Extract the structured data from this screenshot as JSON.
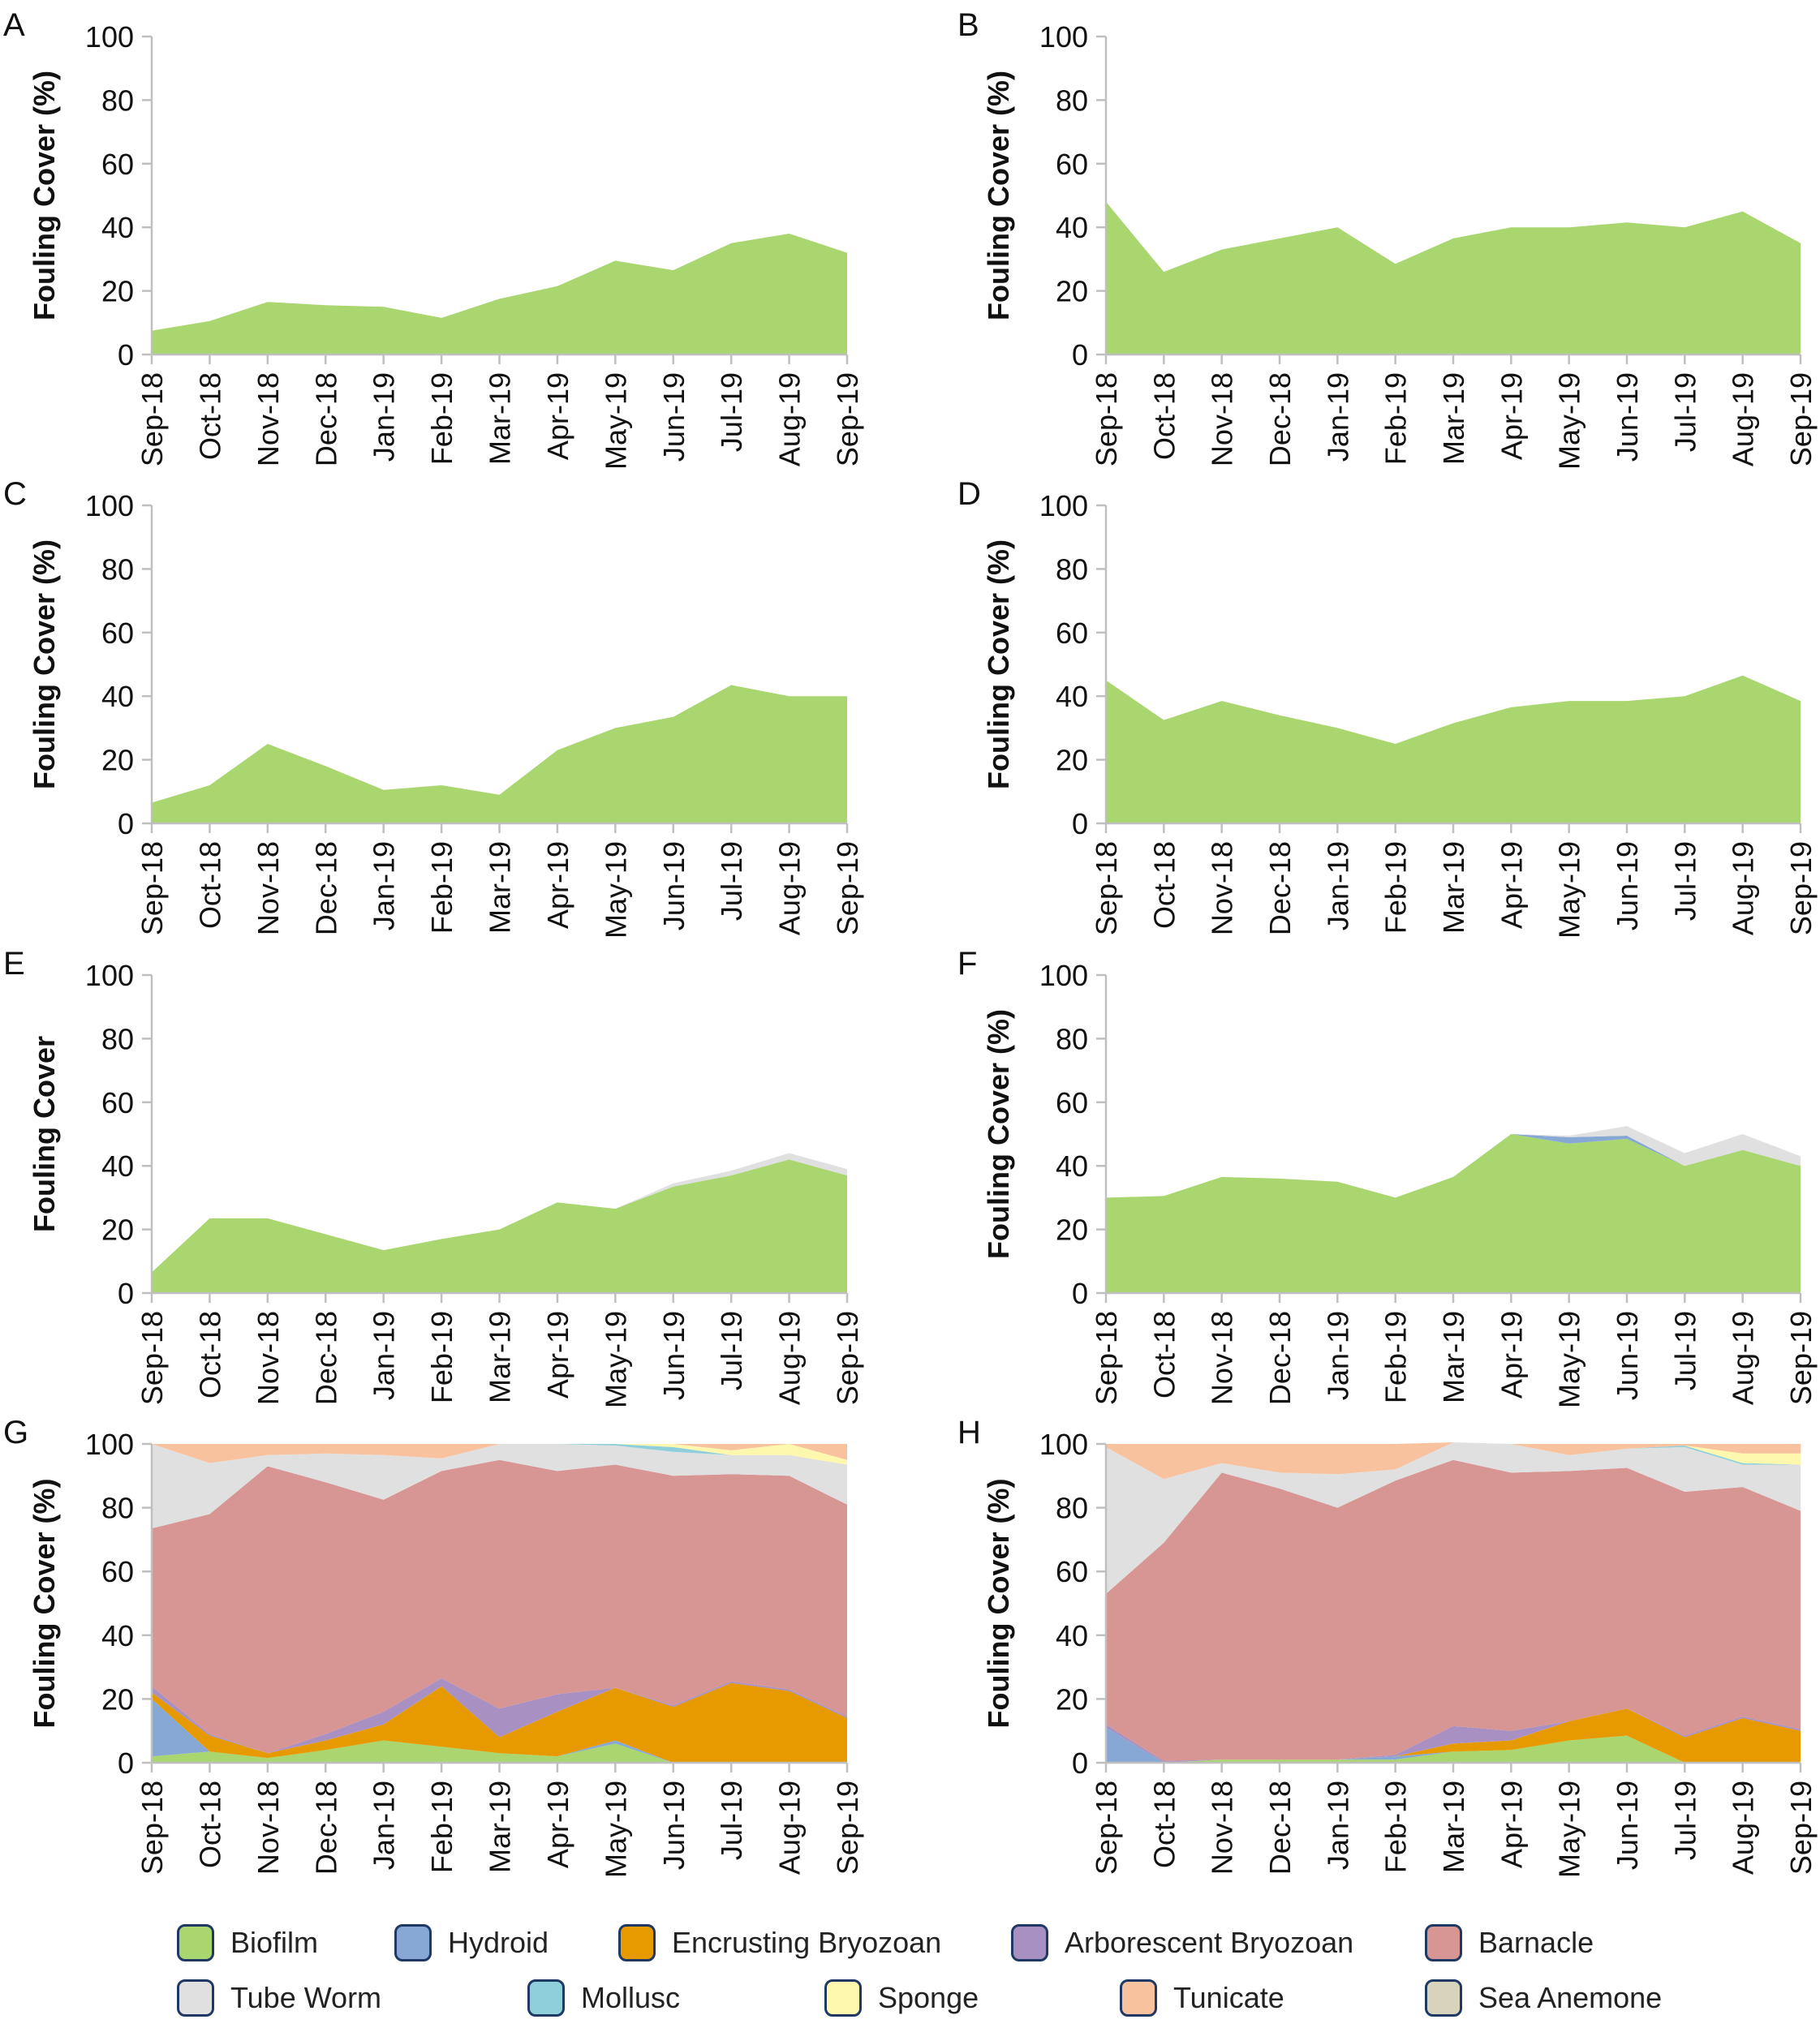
{
  "colors": {
    "Biofilm": "#a9d66f",
    "Hydroid": "#87a7d4",
    "Encrusting Bryozoan": "#e69a00",
    "Arborescent Bryozoan": "#a891c2",
    "Barnacle": "#d79593",
    "Tube Worm": "#e0e0e0",
    "Mollusc": "#8fcfdc",
    "Sponge": "#fdf8ae",
    "Tunicate": "#f8c29e",
    "Sea Anemone": "#d8d3bc"
  },
  "legend": [
    "Biofilm",
    "Hydroid",
    "Encrusting Bryozoan",
    "Arborescent Bryozoan",
    "Barnacle",
    "Tube Worm",
    "Mollusc",
    "Sponge",
    "Tunicate",
    "Sea Anemone"
  ],
  "chart_data": [
    {
      "panel": "A",
      "type": "area",
      "ylabel": "Fouling Cover (%)",
      "ylim": [
        0,
        100
      ],
      "yticks": [
        0,
        20,
        40,
        60,
        80,
        100
      ],
      "categories": [
        "Sep-18",
        "Oct-18",
        "Nov-18",
        "Dec-18",
        "Jan-19",
        "Feb-19",
        "Mar-19",
        "Apr-19",
        "May-19",
        "Jun-19",
        "Jul-19",
        "Aug-19",
        "Sep-19"
      ],
      "series": [
        {
          "name": "Biofilm",
          "values": [
            7.5,
            10.5,
            16.5,
            15.5,
            15,
            11.5,
            17.5,
            21.5,
            29.5,
            26.5,
            35,
            38,
            32
          ]
        }
      ]
    },
    {
      "panel": "B",
      "type": "area",
      "ylabel": "Fouling Cover (%)",
      "ylim": [
        0,
        100
      ],
      "yticks": [
        0,
        20,
        40,
        60,
        80,
        100
      ],
      "categories": [
        "Sep-18",
        "Oct-18",
        "Nov-18",
        "Dec-18",
        "Jan-19",
        "Feb-19",
        "Mar-19",
        "Apr-19",
        "May-19",
        "Jun-19",
        "Jul-19",
        "Aug-19",
        "Sep-19"
      ],
      "series": [
        {
          "name": "Biofilm",
          "values": [
            48,
            26,
            33,
            36.5,
            40,
            28.5,
            36.5,
            40,
            40,
            41.5,
            40,
            45,
            35
          ]
        }
      ]
    },
    {
      "panel": "C",
      "type": "area",
      "ylabel": "Fouling Cover (%)",
      "ylim": [
        0,
        100
      ],
      "yticks": [
        0,
        20,
        40,
        60,
        80,
        100
      ],
      "categories": [
        "Sep-18",
        "Oct-18",
        "Nov-18",
        "Dec-18",
        "Jan-19",
        "Feb-19",
        "Mar-19",
        "Apr-19",
        "May-19",
        "Jun-19",
        "Jul-19",
        "Aug-19",
        "Sep-19"
      ],
      "series": [
        {
          "name": "Biofilm",
          "values": [
            6.5,
            12,
            25,
            18,
            10.5,
            12,
            9,
            23,
            30,
            33.5,
            43.5,
            40,
            40
          ]
        }
      ]
    },
    {
      "panel": "D",
      "type": "area",
      "ylabel": "Fouling Cover (%)",
      "ylim": [
        0,
        100
      ],
      "yticks": [
        0,
        20,
        40,
        60,
        80,
        100
      ],
      "categories": [
        "Sep-18",
        "Oct-18",
        "Nov-18",
        "Dec-18",
        "Jan-19",
        "Feb-19",
        "Mar-19",
        "Apr-19",
        "May-19",
        "Jun-19",
        "Jul-19",
        "Aug-19",
        "Sep-19"
      ],
      "series": [
        {
          "name": "Biofilm",
          "values": [
            45,
            32.5,
            38.5,
            34,
            30,
            25,
            31.5,
            36.5,
            38.5,
            38.5,
            40,
            46.5,
            38.5
          ]
        }
      ]
    },
    {
      "panel": "E",
      "type": "area",
      "ylabel": "Fouling Cover",
      "ylim": [
        0,
        100
      ],
      "yticks": [
        0,
        20,
        40,
        60,
        80,
        100
      ],
      "categories": [
        "Sep-18",
        "Oct-18",
        "Nov-18",
        "Dec-18",
        "Jan-19",
        "Feb-19",
        "Mar-19",
        "Apr-19",
        "May-19",
        "Jun-19",
        "Jul-19",
        "Aug-19",
        "Sep-19"
      ],
      "series": [
        {
          "name": "Biofilm",
          "values": [
            6.5,
            23.5,
            23.5,
            18.5,
            13.5,
            17,
            20,
            28.5,
            26.5,
            33.5,
            37,
            42,
            37
          ]
        },
        {
          "name": "Tube Worm",
          "values": [
            0,
            0,
            0,
            0,
            0,
            0,
            0,
            0,
            0,
            1,
            1.5,
            2,
            2
          ]
        }
      ]
    },
    {
      "panel": "F",
      "type": "area",
      "ylabel": "Fouling Cover (%)",
      "ylim": [
        0,
        100
      ],
      "yticks": [
        0,
        20,
        40,
        60,
        80,
        100
      ],
      "categories": [
        "Sep-18",
        "Oct-18",
        "Nov-18",
        "Dec-18",
        "Jan-19",
        "Feb-19",
        "Mar-19",
        "Apr-19",
        "May-19",
        "Jun-19",
        "Jul-19",
        "Aug-19",
        "Sep-19"
      ],
      "series": [
        {
          "name": "Biofilm",
          "values": [
            30,
            30.5,
            36.5,
            36,
            35,
            30,
            36.5,
            50,
            47,
            48.5,
            40,
            45,
            40
          ]
        },
        {
          "name": "Hydroid",
          "values": [
            0,
            0,
            0,
            0,
            0,
            0,
            0,
            0,
            2,
            1,
            0,
            0,
            0
          ]
        },
        {
          "name": "Tube Worm",
          "values": [
            0,
            0,
            0,
            0,
            0,
            0,
            0,
            0,
            0.5,
            3,
            4,
            5,
            3
          ]
        }
      ]
    },
    {
      "panel": "G",
      "type": "area",
      "ylabel": "Fouling Cover (%)",
      "ylim": [
        0,
        100
      ],
      "yticks": [
        0,
        20,
        40,
        60,
        80,
        100
      ],
      "categories": [
        "Sep-18",
        "Oct-18",
        "Nov-18",
        "Dec-18",
        "Jan-19",
        "Feb-19",
        "Mar-19",
        "Apr-19",
        "May-19",
        "Jun-19",
        "Jul-19",
        "Aug-19",
        "Sep-19"
      ],
      "series": [
        {
          "name": "Biofilm",
          "values": [
            2,
            3.5,
            1.5,
            4,
            7,
            5,
            3,
            2,
            6,
            0,
            0,
            0,
            0
          ]
        },
        {
          "name": "Hydroid",
          "values": [
            18,
            0,
            0,
            0,
            0,
            0,
            0,
            0,
            1,
            0,
            0,
            0,
            0
          ]
        },
        {
          "name": "Encrusting Bryozoan",
          "values": [
            2,
            5,
            1.5,
            3,
            5,
            19,
            5,
            14,
            16.5,
            17.5,
            25,
            22.5,
            14
          ]
        },
        {
          "name": "Arborescent Bryozoan",
          "values": [
            2,
            0.5,
            0,
            2,
            4,
            2.5,
            9,
            5.5,
            0,
            0.5,
            0.5,
            0.5,
            0.5
          ]
        },
        {
          "name": "Barnacle",
          "values": [
            49.5,
            69,
            90,
            79,
            66.5,
            65,
            78,
            70,
            70,
            72,
            65,
            67,
            66.5
          ]
        },
        {
          "name": "Tube Worm",
          "values": [
            26.5,
            16,
            3.5,
            9,
            14,
            4,
            5,
            8.5,
            6,
            7.5,
            6,
            6.5,
            12.5
          ]
        },
        {
          "name": "Mollusc",
          "values": [
            0,
            0,
            0,
            0,
            0,
            0,
            0,
            0,
            0.5,
            1.5,
            0,
            0,
            0
          ]
        },
        {
          "name": "Sponge",
          "values": [
            0,
            0,
            0,
            0,
            0,
            0,
            0,
            0,
            0,
            1,
            1.5,
            3.5,
            1.5
          ]
        },
        {
          "name": "Tunicate",
          "values": [
            0,
            6,
            3.5,
            3,
            3.5,
            4.5,
            0,
            0,
            0,
            0,
            2,
            0,
            5
          ]
        }
      ]
    },
    {
      "panel": "H",
      "type": "area",
      "ylabel": "Fouling Cover (%)",
      "ylim": [
        0,
        100
      ],
      "yticks": [
        0,
        20,
        40,
        60,
        80,
        100
      ],
      "categories": [
        "Sep-18",
        "Oct-18",
        "Nov-18",
        "Dec-18",
        "Jan-19",
        "Feb-19",
        "Mar-19",
        "Apr-19",
        "May-19",
        "Jun-19",
        "Jul-19",
        "Aug-19",
        "Sep-19"
      ],
      "series": [
        {
          "name": "Biofilm",
          "values": [
            0,
            0,
            1,
            1,
            1,
            1,
            3.5,
            4,
            7,
            8.5,
            0,
            0,
            0
          ]
        },
        {
          "name": "Hydroid",
          "values": [
            11,
            0,
            0,
            0,
            0,
            1,
            0,
            0,
            0,
            0,
            0,
            0,
            0
          ]
        },
        {
          "name": "Encrusting Bryozoan",
          "values": [
            0,
            0,
            0,
            0,
            0,
            0,
            2.5,
            3,
            6,
            8.5,
            8,
            14,
            10
          ]
        },
        {
          "name": "Arborescent Bryozoan",
          "values": [
            1,
            0.5,
            0,
            0,
            0,
            0.5,
            5.5,
            3,
            0,
            0,
            0.5,
            0.5,
            0.5
          ]
        },
        {
          "name": "Barnacle",
          "values": [
            41,
            68.5,
            90,
            85,
            79,
            86,
            83.5,
            81,
            78.5,
            75.5,
            76.5,
            72,
            68.5
          ]
        },
        {
          "name": "Tube Worm",
          "values": [
            46,
            20,
            3,
            5,
            10.5,
            3.5,
            5.5,
            9,
            5,
            6,
            14,
            7,
            14.5
          ]
        },
        {
          "name": "Mollusc",
          "values": [
            0,
            0,
            0,
            0,
            0,
            0,
            0,
            0,
            0,
            0,
            0.5,
            0.5,
            0
          ]
        },
        {
          "name": "Sponge",
          "values": [
            0,
            0,
            0,
            0,
            0,
            0,
            0,
            0,
            0,
            0,
            0,
            3,
            3.5
          ]
        },
        {
          "name": "Tunicate",
          "values": [
            1,
            11,
            6,
            9,
            9.5,
            8,
            0,
            0,
            3.5,
            1.5,
            0.5,
            3,
            3
          ]
        }
      ]
    }
  ]
}
